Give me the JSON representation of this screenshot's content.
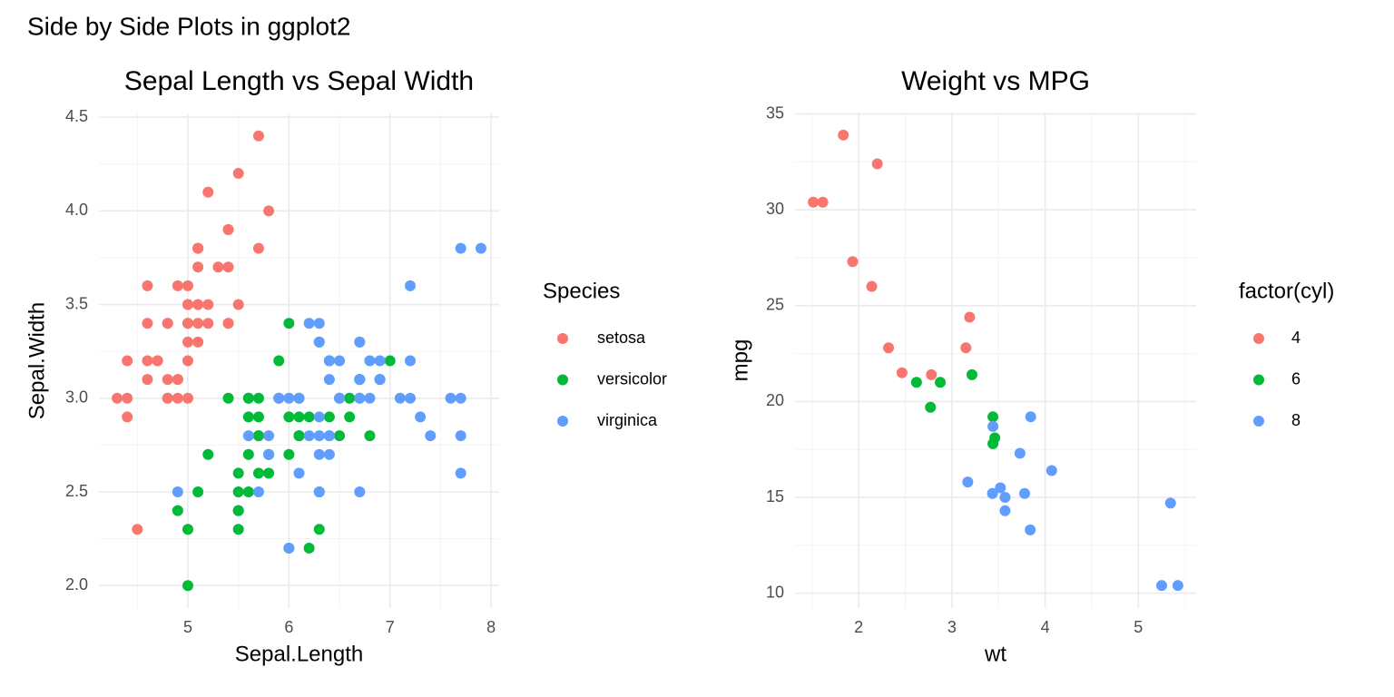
{
  "title": "Side by Side Plots in ggplot2",
  "chart_data": [
    {
      "type": "scatter",
      "title": "Sepal Length vs Sepal Width",
      "x_label": "Sepal.Length",
      "y_label": "Sepal.Width",
      "legend_title": "Species",
      "legend": "right",
      "grid": true,
      "xlim": [
        4.12,
        8.08
      ],
      "xticks": [
        5,
        6,
        7,
        8
      ],
      "x_minor_ticks": [
        4.5,
        5.5,
        6.5,
        7.5
      ],
      "ylim": [
        1.88,
        4.52
      ],
      "yticks": [
        {
          "value": 2,
          "label": "2.0"
        },
        2.5,
        {
          "value": 3,
          "label": "3.0"
        },
        3.5,
        {
          "value": 4,
          "label": "4.0"
        },
        4.5
      ],
      "y_minor_ticks": [
        2.25,
        2.75,
        3.25,
        3.75,
        4.25
      ],
      "series": [
        {
          "name": "setosa",
          "color": "#F8766D",
          "x": [
            5.1,
            4.9,
            4.7,
            4.6,
            5.0,
            5.4,
            4.6,
            5.0,
            4.4,
            4.9,
            5.4,
            4.8,
            4.8,
            4.3,
            5.8,
            5.7,
            5.4,
            5.1,
            5.7,
            5.1,
            5.4,
            5.1,
            4.6,
            5.1,
            4.8,
            5.0,
            5.0,
            5.2,
            5.2,
            4.7,
            4.8,
            5.4,
            5.2,
            5.5,
            4.9,
            5.0,
            5.5,
            4.9,
            4.4,
            5.1,
            5.0,
            4.5,
            4.4,
            5.0,
            5.1,
            4.8,
            5.1,
            4.6,
            5.3,
            5.0
          ],
          "values": [
            3.5,
            3.0,
            3.2,
            3.1,
            3.6,
            3.9,
            3.4,
            3.4,
            2.9,
            3.1,
            3.7,
            3.4,
            3.0,
            3.0,
            4.0,
            4.4,
            3.9,
            3.5,
            3.8,
            3.8,
            3.4,
            3.7,
            3.6,
            3.3,
            3.4,
            3.0,
            3.4,
            3.5,
            3.4,
            3.2,
            3.1,
            3.4,
            4.1,
            4.2,
            3.1,
            3.2,
            3.5,
            3.6,
            3.0,
            3.4,
            3.5,
            2.3,
            3.2,
            3.5,
            3.8,
            3.0,
            3.8,
            3.2,
            3.7,
            3.3
          ]
        },
        {
          "name": "versicolor",
          "color": "#00BA38",
          "x": [
            7.0,
            6.4,
            6.9,
            5.5,
            6.5,
            5.7,
            6.3,
            4.9,
            6.6,
            5.2,
            5.0,
            5.9,
            6.0,
            6.1,
            5.6,
            6.7,
            5.6,
            5.8,
            6.2,
            5.6,
            5.9,
            6.1,
            6.3,
            6.1,
            6.4,
            6.6,
            6.8,
            6.7,
            6.0,
            5.7,
            5.5,
            5.5,
            5.8,
            6.0,
            5.4,
            6.0,
            6.7,
            6.3,
            5.6,
            5.5,
            5.5,
            6.1,
            5.8,
            5.0,
            5.6,
            5.7,
            5.7,
            6.2,
            5.1,
            5.7
          ],
          "values": [
            3.2,
            3.2,
            3.1,
            2.3,
            2.8,
            2.8,
            3.3,
            2.4,
            2.9,
            2.7,
            2.0,
            3.0,
            2.2,
            2.9,
            2.9,
            3.1,
            3.0,
            2.7,
            2.2,
            2.5,
            3.2,
            2.8,
            2.5,
            2.8,
            2.9,
            3.0,
            2.8,
            3.0,
            2.9,
            2.6,
            2.4,
            2.4,
            2.7,
            2.7,
            3.0,
            3.4,
            3.1,
            2.3,
            3.0,
            2.5,
            2.6,
            3.0,
            2.6,
            2.3,
            2.7,
            3.0,
            2.9,
            2.9,
            2.5,
            2.8
          ]
        },
        {
          "name": "virginica",
          "color": "#619CFF",
          "x": [
            6.3,
            5.8,
            7.1,
            6.3,
            6.5,
            7.6,
            4.9,
            7.3,
            6.7,
            7.2,
            6.5,
            6.4,
            6.8,
            5.7,
            5.8,
            6.4,
            6.5,
            7.7,
            7.7,
            6.0,
            6.9,
            5.6,
            7.7,
            6.3,
            6.7,
            7.2,
            6.2,
            6.1,
            6.4,
            7.2,
            7.4,
            7.9,
            6.4,
            6.3,
            6.1,
            7.7,
            6.3,
            6.4,
            6.0,
            6.9,
            6.7,
            6.9,
            5.8,
            6.8,
            6.7,
            6.7,
            6.3,
            6.5,
            6.2,
            5.9
          ],
          "values": [
            3.3,
            2.7,
            3.0,
            2.9,
            3.0,
            3.0,
            2.5,
            2.9,
            2.5,
            3.6,
            3.2,
            2.7,
            3.0,
            2.5,
            2.8,
            3.2,
            3.0,
            3.8,
            2.6,
            2.2,
            3.2,
            2.8,
            2.8,
            2.7,
            3.3,
            3.2,
            2.8,
            3.0,
            2.8,
            3.0,
            2.8,
            3.8,
            2.8,
            2.8,
            2.6,
            3.0,
            3.4,
            3.1,
            3.0,
            3.1,
            3.1,
            3.1,
            2.7,
            3.2,
            3.3,
            3.0,
            2.5,
            3.0,
            3.4,
            3.0
          ]
        }
      ]
    },
    {
      "type": "scatter",
      "title": "Weight vs MPG",
      "x_label": "wt",
      "y_label": "mpg",
      "legend_title": "factor(cyl)",
      "legend": "right",
      "grid": true,
      "xlim": [
        1.317,
        5.62
      ],
      "xticks": [
        2,
        3,
        4,
        5
      ],
      "x_minor_ticks": [
        1.5,
        2.5,
        3.5,
        4.5,
        5.5
      ],
      "ylim": [
        9.225,
        35.075
      ],
      "yticks": [
        10,
        15,
        20,
        25,
        30,
        35
      ],
      "y_minor_ticks": [
        12.5,
        17.5,
        22.5,
        27.5,
        32.5
      ],
      "series": [
        {
          "name": "4",
          "color": "#F8766D",
          "x": [
            2.32,
            3.19,
            3.15,
            2.2,
            1.615,
            1.835,
            2.465,
            1.935,
            2.14,
            1.513,
            2.78
          ],
          "values": [
            22.8,
            24.4,
            22.8,
            32.4,
            30.4,
            33.9,
            21.5,
            27.3,
            26.0,
            30.4,
            21.4
          ]
        },
        {
          "name": "6",
          "color": "#00BA38",
          "x": [
            2.62,
            2.875,
            3.215,
            3.46,
            3.44,
            3.44,
            2.77
          ],
          "values": [
            21.0,
            21.0,
            21.4,
            18.1,
            19.2,
            17.8,
            19.7
          ]
        },
        {
          "name": "8",
          "color": "#619CFF",
          "x": [
            3.44,
            3.57,
            4.07,
            3.73,
            3.78,
            5.25,
            5.424,
            5.345,
            3.52,
            3.435,
            3.84,
            3.845,
            3.17,
            3.57
          ],
          "values": [
            18.7,
            14.3,
            16.4,
            17.3,
            15.2,
            10.4,
            10.4,
            14.7,
            15.5,
            15.2,
            13.3,
            19.2,
            15.8,
            15.0
          ]
        }
      ]
    }
  ]
}
